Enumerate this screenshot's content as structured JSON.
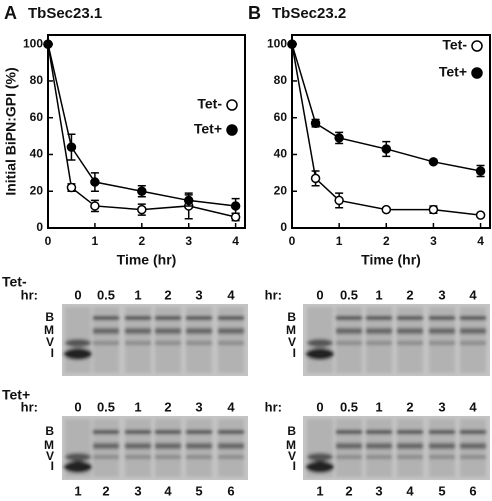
{
  "chart_data": [
    {
      "type": "line",
      "panel": "A",
      "title": "TbSec23.1",
      "xlabel": "Time (hr)",
      "ylabel": "Initial BiPN:GPI (%)",
      "x": [
        0,
        0.5,
        1,
        2,
        3,
        4
      ],
      "xlim": [
        0,
        4.2
      ],
      "ylim": [
        0,
        105
      ],
      "xticks": [
        0,
        1,
        2,
        3,
        4
      ],
      "yticks": [
        0,
        20,
        40,
        60,
        80,
        100
      ],
      "series": [
        {
          "name": "Tet-",
          "color": "#000000",
          "marker": "open",
          "values": [
            100,
            22,
            12,
            10,
            12,
            6
          ],
          "errors": [
            0,
            2,
            3,
            3,
            7,
            2
          ]
        },
        {
          "name": "Tet+",
          "color": "#000000",
          "marker": "filled",
          "values": [
            100,
            44,
            25,
            20,
            15,
            12
          ],
          "errors": [
            0,
            7,
            5,
            3,
            3,
            4
          ]
        }
      ]
    },
    {
      "type": "line",
      "panel": "B",
      "title": "TbSec23.2",
      "xlabel": "Time (hr)",
      "x": [
        0,
        0.5,
        1,
        2,
        3,
        4
      ],
      "xlim": [
        0,
        4.2
      ],
      "ylim": [
        0,
        105
      ],
      "xticks": [
        0,
        1,
        2,
        3,
        4
      ],
      "yticks": [
        0,
        20,
        40,
        60,
        80,
        100
      ],
      "series": [
        {
          "name": "Tet-",
          "color": "#000000",
          "marker": "open",
          "values": [
            100,
            27,
            15,
            10,
            10,
            7
          ],
          "errors": [
            0,
            4,
            4,
            1,
            2,
            1
          ]
        },
        {
          "name": "Tet+",
          "color": "#000000",
          "marker": "filled",
          "values": [
            100,
            57,
            49,
            43,
            36,
            31
          ],
          "errors": [
            0,
            2,
            3,
            4,
            1,
            3
          ]
        }
      ]
    }
  ],
  "gels": {
    "rows": [
      "Tet-",
      "Tet+"
    ],
    "hr_label": "hr:",
    "lanes": [
      "0",
      "0.5",
      "1",
      "2",
      "3",
      "4"
    ],
    "bands": [
      "B",
      "M",
      "V",
      "I"
    ],
    "lane_numbers": [
      "1",
      "2",
      "3",
      "4",
      "5",
      "6"
    ]
  }
}
